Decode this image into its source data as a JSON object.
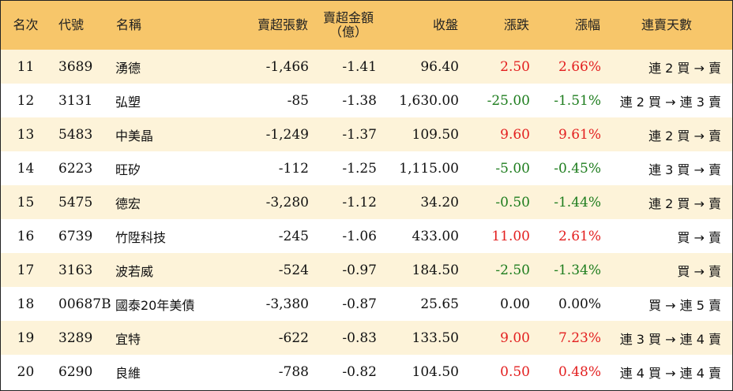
{
  "headers": {
    "rank": "名次",
    "code": "代號",
    "name": "名稱",
    "sell_shares": "賣超張數",
    "sell_amount_1": "賣超金額",
    "sell_amount_2": "（億）",
    "close": "收盤",
    "change": "漲跌",
    "pct": "漲幅",
    "streak": "連賣天數"
  },
  "rows": [
    {
      "rank": "11",
      "code": "3689",
      "name": "湧德",
      "shares": "-1,466",
      "amount": "-1.41",
      "close": "96.40",
      "change": "2.50",
      "pct": "2.66%",
      "streak": "連 2 買 → 賣",
      "color": "#e32020"
    },
    {
      "rank": "12",
      "code": "3131",
      "name": "弘塑",
      "shares": "-85",
      "amount": "-1.38",
      "close": "1,630.00",
      "change": "-25.00",
      "pct": "-1.51%",
      "streak": "連 2 買 → 連 3 賣",
      "color": "#1e7d1e"
    },
    {
      "rank": "13",
      "code": "5483",
      "name": "中美晶",
      "shares": "-1,249",
      "amount": "-1.37",
      "close": "109.50",
      "change": "9.60",
      "pct": "9.61%",
      "streak": "連 2 買 → 賣",
      "color": "#e32020"
    },
    {
      "rank": "14",
      "code": "6223",
      "name": "旺矽",
      "shares": "-112",
      "amount": "-1.25",
      "close": "1,115.00",
      "change": "-5.00",
      "pct": "-0.45%",
      "streak": "連 3 買 → 賣",
      "color": "#1e7d1e"
    },
    {
      "rank": "15",
      "code": "5475",
      "name": "德宏",
      "shares": "-3,280",
      "amount": "-1.12",
      "close": "34.20",
      "change": "-0.50",
      "pct": "-1.44%",
      "streak": "連 2 買 → 賣",
      "color": "#1e7d1e"
    },
    {
      "rank": "16",
      "code": "6739",
      "name": "竹陞科技",
      "shares": "-245",
      "amount": "-1.06",
      "close": "433.00",
      "change": "11.00",
      "pct": "2.61%",
      "streak": "買 → 賣",
      "color": "#e32020"
    },
    {
      "rank": "17",
      "code": "3163",
      "name": "波若威",
      "shares": "-524",
      "amount": "-0.97",
      "close": "184.50",
      "change": "-2.50",
      "pct": "-1.34%",
      "streak": "買 → 賣",
      "color": "#1e7d1e"
    },
    {
      "rank": "18",
      "code": "00687B",
      "name": "國泰20年美債",
      "shares": "-3,380",
      "amount": "-0.87",
      "close": "25.65",
      "change": "0.00",
      "pct": "0.00%",
      "streak": "買 → 連 5 賣",
      "color": "#111111"
    },
    {
      "rank": "19",
      "code": "3289",
      "name": "宜特",
      "shares": "-622",
      "amount": "-0.83",
      "close": "133.50",
      "change": "9.00",
      "pct": "7.23%",
      "streak": "連 3 買 → 連 4 賣",
      "color": "#e32020"
    },
    {
      "rank": "20",
      "code": "6290",
      "name": "良維",
      "shares": "-788",
      "amount": "-0.82",
      "close": "104.50",
      "change": "0.50",
      "pct": "0.48%",
      "streak": "連 4 買 → 連 4 賣",
      "color": "#e32020"
    }
  ],
  "colors": {
    "header_bg": "#f7c66a",
    "alt_row_bg": "#fdf3d9",
    "up": "#e32020",
    "down": "#1e7d1e",
    "flat": "#111111"
  }
}
